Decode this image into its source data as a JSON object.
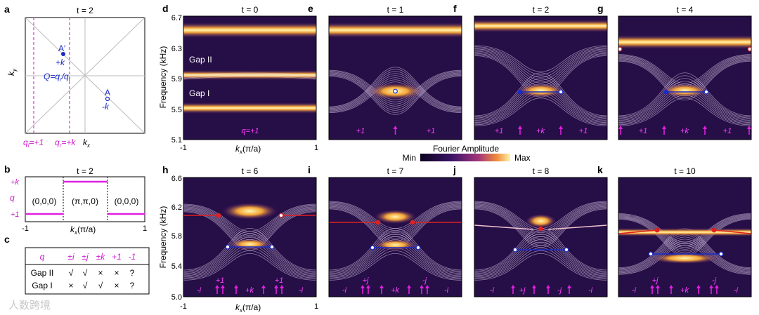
{
  "figure": {
    "panel_a": {
      "letter": "a",
      "title": "t = 2",
      "ylabel": "k",
      "ylabel_sub": "y",
      "xlabel": "k",
      "xlabel_sub": "x",
      "point_A_prime": "A′",
      "label_pk": "+k",
      "point_A": "A",
      "label_mk": "-k",
      "Q_label": "Q=q",
      "Q_r": "r",
      "Q_slash": "/q",
      "Q_l": "l",
      "ql_label": "q",
      "ql_sub": "l",
      "ql_val": "=+1",
      "qr_label": "q",
      "qr_sub": "r",
      "qr_val": "=+k"
    },
    "panel_b": {
      "letter": "b",
      "title": "t = 2",
      "ytop": "+k",
      "ylabel": "q",
      "ybot": "+1",
      "seg_left": "(0,0,0)",
      "seg_mid": "(π,π,0)",
      "seg_right": "(0,0,0)",
      "xmin": "-1",
      "xmax": "1",
      "xlabel": "k",
      "xlabel_sub": "x",
      "xunit": "(π/a)"
    },
    "panel_c": {
      "letter": "c",
      "header": [
        "q",
        "±i",
        "±j",
        "±k",
        "+1",
        "-1"
      ],
      "rows": [
        [
          "Gap II",
          "√",
          "√",
          "×",
          "×",
          "?"
        ],
        [
          "Gap I",
          "×",
          "√",
          "√",
          "×",
          "?"
        ]
      ]
    },
    "colorbar": {
      "title": "Fourier Amplitude",
      "min": "Min",
      "max": "Max"
    },
    "axes_top": {
      "ylabel": "Frequency (kHz)",
      "yticks": [
        "6.7",
        "6.3",
        "5.9",
        "5.5",
        "5.1"
      ],
      "xlabel": "k",
      "xlabel_sub": "x",
      "xunit": "(π/a)",
      "xmin": "-1",
      "xmax": "1"
    },
    "axes_bottom": {
      "ylabel": "Frequency (kHz)",
      "yticks": [
        "6.6",
        "6.2",
        "5.8",
        "5.4",
        "5.0"
      ],
      "xlabel": "k",
      "xlabel_sub": "x",
      "xunit": "(π/a)",
      "xmin": "-1",
      "xmax": "1"
    },
    "panels_top": [
      {
        "letter": "d",
        "title": "t = 0",
        "labels": [
          "Gap II",
          "Gap I",
          "q=+1"
        ]
      },
      {
        "letter": "e",
        "title": "t = 1",
        "labels": [
          "+1",
          "+1"
        ]
      },
      {
        "letter": "f",
        "title": "t = 2",
        "labels": [
          "+1",
          "+k",
          "+1"
        ]
      },
      {
        "letter": "g",
        "title": "t = 4",
        "labels": [
          "+1",
          "+k",
          "+1"
        ]
      }
    ],
    "panels_bottom": [
      {
        "letter": "h",
        "title": "t = 6",
        "labels": [
          "-i",
          "+1",
          "+k",
          "+1",
          "-i"
        ]
      },
      {
        "letter": "i",
        "title": "t = 7",
        "labels": [
          "-i",
          "+j",
          "+k",
          "-j",
          "-i"
        ]
      },
      {
        "letter": "j",
        "title": "t = 8",
        "labels": [
          "-i",
          "+j",
          "-j",
          "-i"
        ]
      },
      {
        "letter": "k",
        "title": "t = 10",
        "labels": [
          "-i",
          "+j",
          "+k",
          "-j",
          "-i"
        ]
      }
    ],
    "watermark": "人数跨境"
  }
}
